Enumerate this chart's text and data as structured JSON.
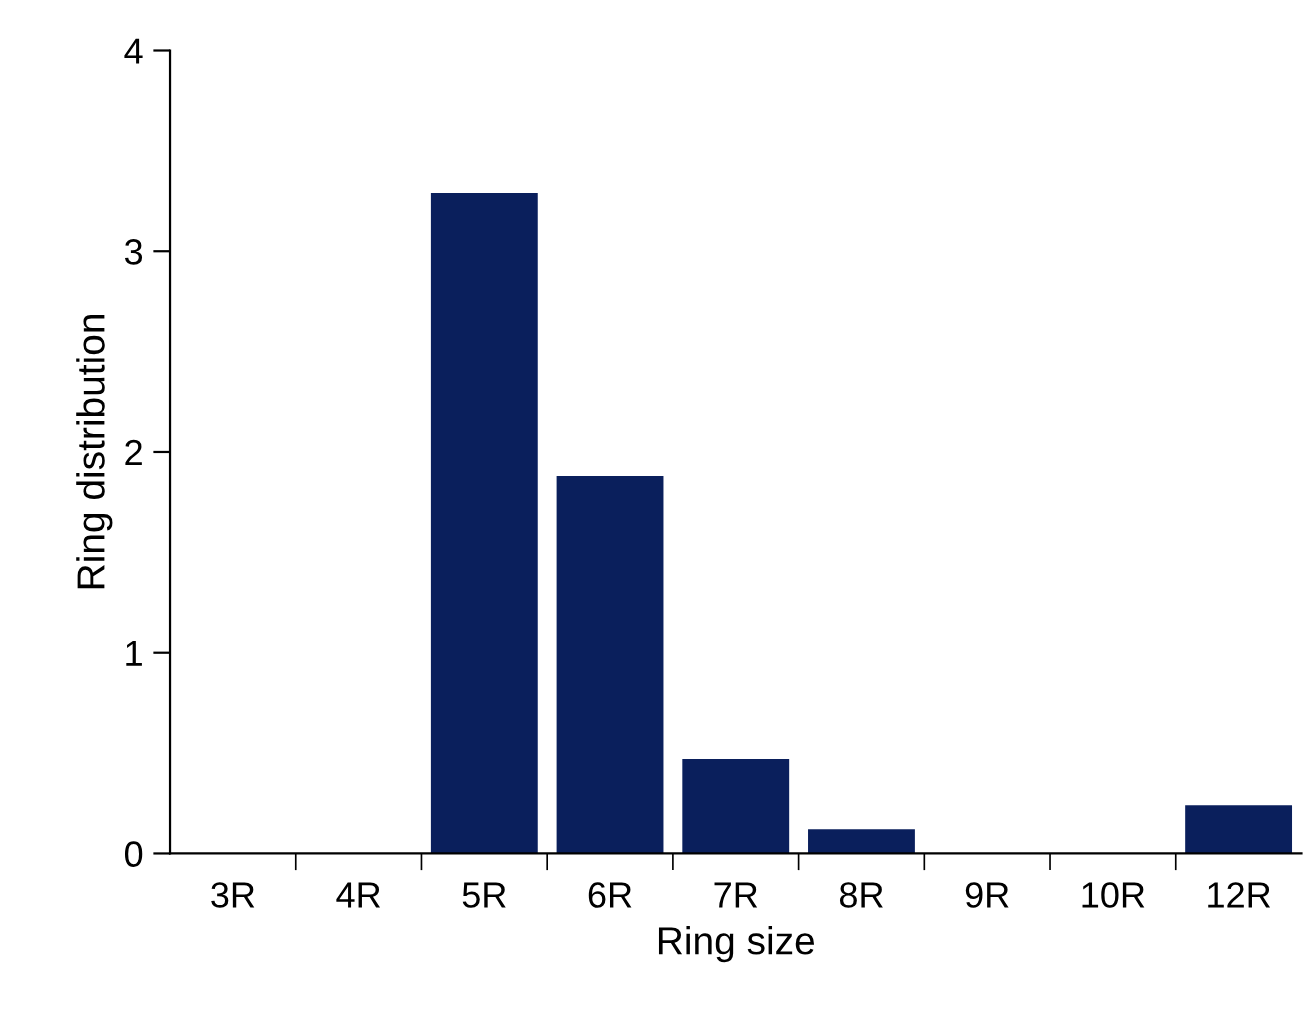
{
  "chart_data": {
    "type": "bar",
    "xlabel": "Ring size",
    "ylabel": "Ring distribution",
    "categories": [
      "3R",
      "4R",
      "5R",
      "6R",
      "7R",
      "8R",
      "9R",
      "10R",
      "12R"
    ],
    "values": [
      0,
      0,
      3.29,
      1.88,
      0.47,
      0.12,
      0,
      0,
      0.24
    ],
    "color": "#0a1f5c",
    "ylim": [
      0,
      4
    ],
    "yticks": [
      0,
      1,
      2,
      3,
      4
    ],
    "grid": false
  }
}
